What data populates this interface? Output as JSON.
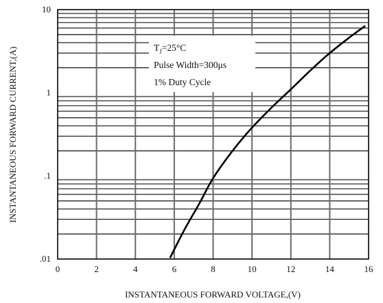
{
  "chart_data": {
    "type": "line",
    "xlabel": "INSTANTANEOUS FORWARD VOLTAGE,(V)",
    "ylabel": "INSTANTANEOUS FORWARD CURRENT,(A)",
    "xlim": [
      0,
      16
    ],
    "ylim": [
      0.01,
      10
    ],
    "yscale": "log",
    "grid": true,
    "x_ticks": [
      "0",
      "2",
      "4",
      "6",
      "8",
      "10",
      "12",
      "14",
      "16"
    ],
    "y_ticks": [
      ".01",
      ".1",
      "1",
      "10"
    ],
    "annotations": {
      "tj_main": "T",
      "tj_sub": "J",
      "tj_rest": "=25°C",
      "pulse": "Pulse Width=300μs",
      "duty": "1% Duty Cycle"
    },
    "series": [
      {
        "x": [
          5.8,
          6.5,
          7.3,
          8.0,
          9.0,
          10.0,
          11.0,
          12.0,
          13.0,
          14.0,
          15.0,
          15.8
        ],
        "y": [
          0.0105,
          0.022,
          0.047,
          0.094,
          0.2,
          0.38,
          0.66,
          1.1,
          1.85,
          3.0,
          4.6,
          6.3
        ]
      }
    ]
  }
}
